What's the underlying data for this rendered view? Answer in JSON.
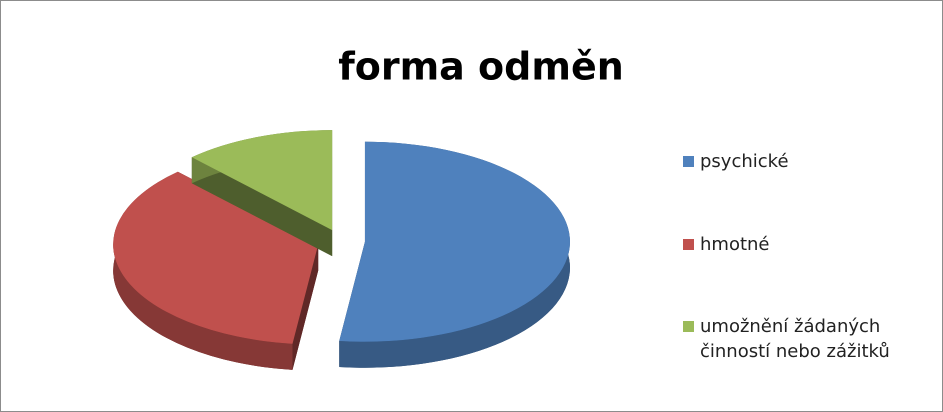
{
  "chart_data": {
    "type": "pie",
    "title": "forma odměn",
    "categories": [
      "psychické",
      "hmotné",
      "umožnění žádaných činností nebo zážitků"
    ],
    "values": [
      52,
      36,
      12
    ],
    "colors": [
      "#4f81bd",
      "#c0504d",
      "#9bbb59"
    ],
    "legend": "right"
  }
}
